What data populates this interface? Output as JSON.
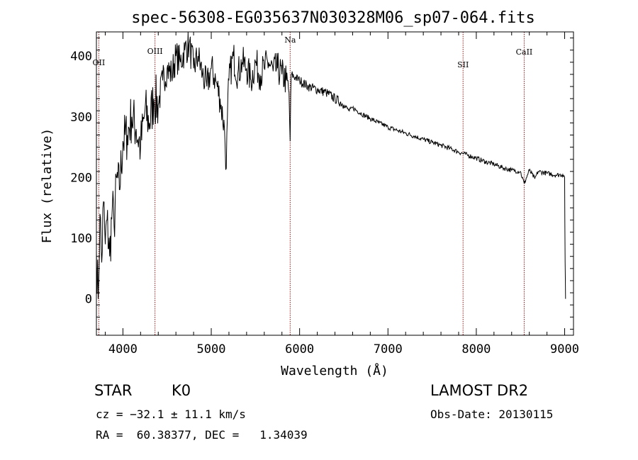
{
  "chart_data": {
    "type": "line",
    "title": "spec-56308-EG035637N030328M06_sp07-064.fits",
    "xlabel": "Wavelength (Å)",
    "ylabel": "Flux (relative)",
    "xlim": [
      3700,
      9100
    ],
    "ylim": [
      -60,
      440
    ],
    "xticks": [
      4000,
      5000,
      6000,
      7000,
      8000,
      9000
    ],
    "yticks": [
      0,
      100,
      200,
      300,
      400
    ],
    "grid": false,
    "line_color": "#000000",
    "marker_line_color": "#8b1a1a",
    "spectral_lines": [
      {
        "label": "OII",
        "wavelength": 3727
      },
      {
        "label": "OIII",
        "wavelength": 4363
      },
      {
        "label": "Na",
        "wavelength": 5893
      },
      {
        "label": "SII",
        "wavelength": 7850
      },
      {
        "label": "CaII",
        "wavelength": 8542
      }
    ],
    "x": [
      3700,
      3720,
      3740,
      3760,
      3780,
      3800,
      3820,
      3850,
      3880,
      3900,
      3930,
      3960,
      4000,
      4050,
      4100,
      4150,
      4200,
      4250,
      4300,
      4350,
      4400,
      4450,
      4500,
      4550,
      4600,
      4650,
      4700,
      4750,
      4800,
      4850,
      4900,
      4950,
      5000,
      5050,
      5100,
      5150,
      5170,
      5183,
      5200,
      5250,
      5300,
      5350,
      5400,
      5450,
      5500,
      5550,
      5600,
      5650,
      5700,
      5750,
      5800,
      5850,
      5880,
      5893,
      5905,
      5950,
      6000,
      6100,
      6200,
      6300,
      6400,
      6500,
      6563,
      6600,
      6700,
      6800,
      6900,
      7000,
      7100,
      7200,
      7300,
      7400,
      7500,
      7600,
      7700,
      7800,
      7900,
      8000,
      8100,
      8200,
      8300,
      8400,
      8498,
      8542,
      8600,
      8662,
      8700,
      8800,
      8900,
      8980,
      9000,
      9005,
      9010
    ],
    "y": [
      80,
      0,
      140,
      60,
      160,
      90,
      130,
      70,
      150,
      120,
      200,
      180,
      260,
      270,
      300,
      280,
      250,
      310,
      290,
      330,
      320,
      360,
      380,
      370,
      400,
      390,
      410,
      420,
      380,
      400,
      370,
      350,
      380,
      360,
      330,
      280,
      215,
      300,
      360,
      400,
      370,
      390,
      380,
      360,
      390,
      370,
      380,
      390,
      375,
      380,
      370,
      360,
      340,
      260,
      370,
      365,
      360,
      350,
      345,
      340,
      330,
      320,
      310,
      315,
      305,
      297,
      290,
      283,
      278,
      273,
      268,
      263,
      258,
      253,
      248,
      242,
      237,
      232,
      226,
      222,
      216,
      212,
      210,
      190,
      212,
      198,
      210,
      207,
      204,
      205,
      200,
      60,
      0
    ]
  },
  "info": {
    "object_type": "STAR",
    "subclass": "K0",
    "survey": "LAMOST DR2",
    "cz": "cz = −32.1 ± 11.1 km/s",
    "obs_date": "Obs-Date: 20130115",
    "radec": "RA =  60.38377, DEC =   1.34039"
  }
}
